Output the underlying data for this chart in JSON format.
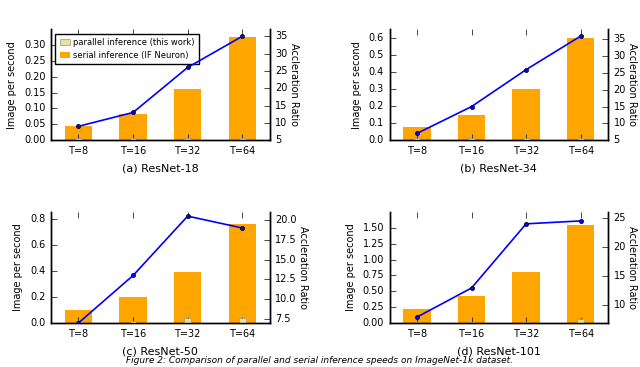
{
  "subplots": [
    {
      "title": "(a) ResNet-18",
      "serial": [
        0.045,
        0.083,
        0.163,
        0.325
      ],
      "parallel": [
        0.008,
        0.008,
        0.008,
        0.008
      ],
      "accel": [
        9.0,
        13.0,
        26.0,
        35.0
      ],
      "ylim": [
        0.0,
        0.35
      ],
      "ylim2": [
        5,
        37
      ],
      "yticks_left": [
        0.0,
        0.05,
        0.1,
        0.15,
        0.2,
        0.25,
        0.3
      ],
      "yticks2": [
        5,
        10,
        15,
        20,
        25,
        30,
        35
      ]
    },
    {
      "title": "(b) ResNet-34",
      "serial": [
        0.08,
        0.15,
        0.3,
        0.6
      ],
      "parallel": [
        0.013,
        0.013,
        0.013,
        0.013
      ],
      "accel": [
        7.0,
        15.0,
        26.0,
        36.0
      ],
      "ylim": [
        0.0,
        0.65
      ],
      "ylim2": [
        5,
        38
      ],
      "yticks_left": [
        0.0,
        0.1,
        0.2,
        0.3,
        0.4,
        0.5,
        0.6
      ],
      "yticks2": [
        5,
        10,
        15,
        20,
        25,
        30,
        35
      ]
    },
    {
      "title": "(c) ResNet-50",
      "serial": [
        0.1,
        0.2,
        0.39,
        0.76
      ],
      "parallel": [
        0.013,
        0.013,
        0.04,
        0.04
      ],
      "accel": [
        7.0,
        13.0,
        20.5,
        19.0
      ],
      "ylim": [
        0.0,
        0.85
      ],
      "ylim2": [
        7.0,
        21.0
      ],
      "yticks_left": [
        0.0,
        0.2,
        0.4,
        0.6,
        0.8
      ],
      "yticks2": [
        7.5,
        10.0,
        12.5,
        15.0,
        17.5,
        20.0
      ]
    },
    {
      "title": "(d) ResNet-101",
      "serial": [
        0.22,
        0.42,
        0.8,
        1.55
      ],
      "parallel": [
        0.02,
        0.02,
        0.02,
        0.07
      ],
      "accel": [
        8.0,
        13.0,
        24.0,
        24.5
      ],
      "ylim": [
        0.0,
        1.75
      ],
      "ylim2": [
        7,
        26
      ],
      "yticks_left": [
        0.0,
        0.25,
        0.5,
        0.75,
        1.0,
        1.25,
        1.5
      ],
      "yticks2": [
        10,
        15,
        20,
        25
      ]
    }
  ],
  "xtick_labels": [
    "T=8",
    "T=16",
    "T=32",
    "T=64"
  ],
  "ylabel_left": "Image per second",
  "ylabel_right": "Accleration Ratio",
  "bar_color_serial": "#FFA500",
  "bar_color_parallel": "#E8DFA0",
  "line_color": "blue",
  "legend_labels": [
    "parallel inference (this work)",
    "serial inference (IF Neuron)"
  ],
  "figure_caption": "Figure 2: Comparison of parallel and serial inference speeds on ImageNet-1k dataset.",
  "bar_width": 0.5
}
